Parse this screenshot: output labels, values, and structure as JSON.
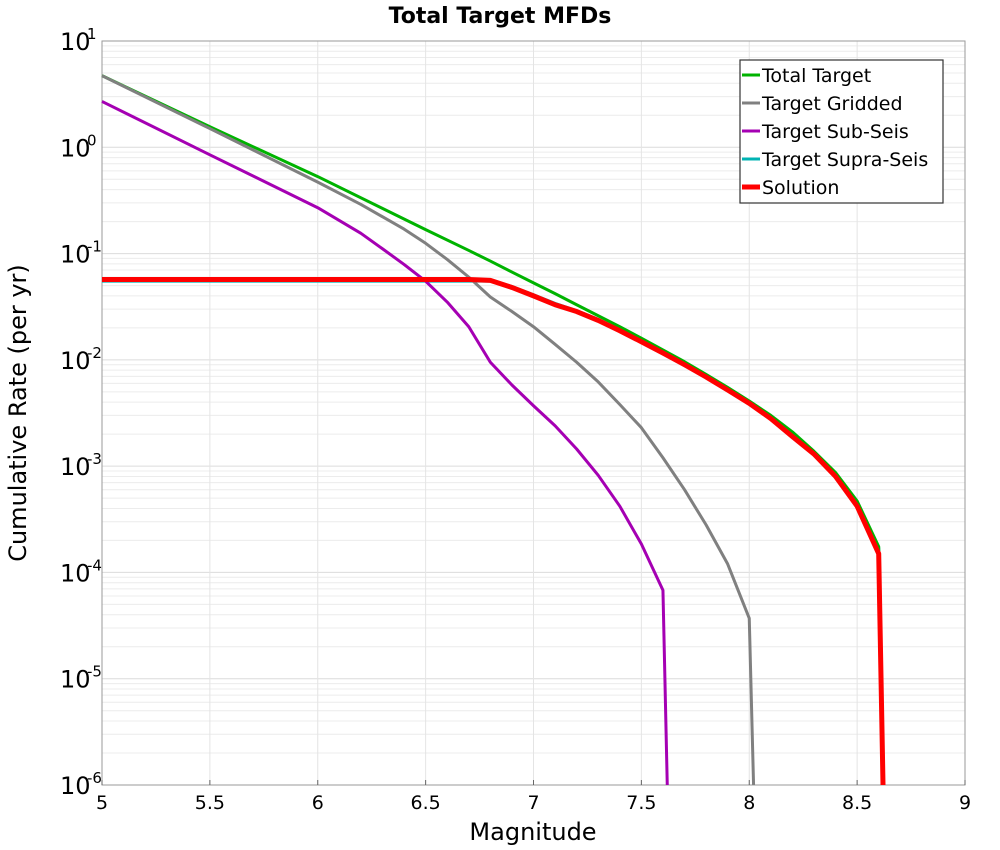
{
  "chart_data": {
    "type": "line",
    "title": "Total Target MFDs",
    "xlabel": "Magnitude",
    "ylabel": "Cumulative Rate (per yr)",
    "xlim": [
      5,
      9
    ],
    "ylim": [
      1e-06,
      10
    ],
    "yscale": "log",
    "grid": true,
    "legend_position": "top-right",
    "xticks": [
      "5",
      "5.5",
      "6",
      "6.5",
      "7",
      "7.5",
      "8",
      "8.5",
      "9"
    ],
    "ytick_base": "10",
    "yticks": [
      {
        "value": 10,
        "exp": "1"
      },
      {
        "value": 1,
        "exp": "0"
      },
      {
        "value": 0.1,
        "exp": "-1"
      },
      {
        "value": 0.01,
        "exp": "-2"
      },
      {
        "value": 0.001,
        "exp": "-3"
      },
      {
        "value": 0.0001,
        "exp": "-4"
      },
      {
        "value": 1e-05,
        "exp": "-5"
      },
      {
        "value": 1e-06,
        "exp": "-6"
      }
    ],
    "series": [
      {
        "name": "Target Supra-Seis",
        "color": "#00b3b3",
        "width": 3,
        "points": [
          [
            5.0,
            0.055
          ],
          [
            6.5,
            0.055
          ],
          [
            6.7,
            0.055
          ],
          [
            6.8,
            0.055
          ],
          [
            6.9,
            0.049
          ],
          [
            7.0,
            0.041
          ],
          [
            7.1,
            0.034
          ],
          [
            7.2,
            0.029
          ],
          [
            7.3,
            0.024
          ],
          [
            7.4,
            0.019
          ],
          [
            7.5,
            0.015
          ],
          [
            7.6,
            0.0118
          ],
          [
            7.7,
            0.0092
          ],
          [
            7.8,
            0.0071
          ],
          [
            7.9,
            0.0054
          ],
          [
            8.0,
            0.004
          ],
          [
            8.1,
            0.0029
          ],
          [
            8.2,
            0.002
          ],
          [
            8.3,
            0.00135
          ],
          [
            8.4,
            0.00085
          ],
          [
            8.5,
            0.00046
          ],
          [
            8.6,
            0.00017
          ],
          [
            8.62,
            1e-06
          ]
        ]
      },
      {
        "name": "Total Target",
        "color": "#00b300",
        "width": 3,
        "points": [
          [
            5.0,
            4.72
          ],
          [
            5.5,
            1.56
          ],
          [
            6.0,
            0.53
          ],
          [
            6.5,
            0.168
          ],
          [
            6.7,
            0.107
          ],
          [
            6.8,
            0.085
          ],
          [
            6.9,
            0.067
          ],
          [
            7.0,
            0.053
          ],
          [
            7.1,
            0.042
          ],
          [
            7.2,
            0.033
          ],
          [
            7.3,
            0.026
          ],
          [
            7.4,
            0.0205
          ],
          [
            7.5,
            0.016
          ],
          [
            7.6,
            0.0124
          ],
          [
            7.7,
            0.0096
          ],
          [
            7.8,
            0.0073
          ],
          [
            7.9,
            0.0055
          ],
          [
            8.0,
            0.0041
          ],
          [
            8.1,
            0.003
          ],
          [
            8.2,
            0.0021
          ],
          [
            8.3,
            0.00138
          ],
          [
            8.4,
            0.00087
          ],
          [
            8.5,
            0.00047
          ],
          [
            8.6,
            0.000175
          ],
          [
            8.62,
            1e-06
          ]
        ]
      },
      {
        "name": "Target Gridded",
        "color": "#808080",
        "width": 3,
        "points": [
          [
            5.0,
            4.72
          ],
          [
            5.5,
            1.5
          ],
          [
            6.0,
            0.47
          ],
          [
            6.2,
            0.29
          ],
          [
            6.4,
            0.17
          ],
          [
            6.5,
            0.125
          ],
          [
            6.6,
            0.088
          ],
          [
            6.7,
            0.06
          ],
          [
            6.8,
            0.039
          ],
          [
            6.9,
            0.0285
          ],
          [
            7.0,
            0.0205
          ],
          [
            7.1,
            0.014
          ],
          [
            7.2,
            0.0095
          ],
          [
            7.3,
            0.0062
          ],
          [
            7.4,
            0.0038
          ],
          [
            7.5,
            0.0023
          ],
          [
            7.6,
            0.0012
          ],
          [
            7.7,
            0.0006
          ],
          [
            7.8,
            0.00028
          ],
          [
            7.9,
            0.00012
          ],
          [
            8.0,
            3.7e-05
          ],
          [
            8.02,
            1e-06
          ]
        ]
      },
      {
        "name": "Target Sub-Seis",
        "color": "#a500b3",
        "width": 3,
        "points": [
          [
            5.0,
            2.7
          ],
          [
            5.5,
            0.85
          ],
          [
            6.0,
            0.27
          ],
          [
            6.2,
            0.155
          ],
          [
            6.3,
            0.111
          ],
          [
            6.4,
            0.079
          ],
          [
            6.5,
            0.055
          ],
          [
            6.6,
            0.035
          ],
          [
            6.7,
            0.0205
          ],
          [
            6.8,
            0.0095
          ],
          [
            6.9,
            0.0058
          ],
          [
            7.0,
            0.0037
          ],
          [
            7.1,
            0.0024
          ],
          [
            7.2,
            0.00145
          ],
          [
            7.3,
            0.00082
          ],
          [
            7.4,
            0.00042
          ],
          [
            7.5,
            0.000185
          ],
          [
            7.6,
            6.8e-05
          ],
          [
            7.62,
            1e-06
          ]
        ]
      },
      {
        "name": "Solution",
        "color": "#ff0000",
        "width": 5,
        "points": [
          [
            5.0,
            0.057
          ],
          [
            6.5,
            0.057
          ],
          [
            6.7,
            0.057
          ],
          [
            6.8,
            0.056
          ],
          [
            6.9,
            0.048
          ],
          [
            7.0,
            0.04
          ],
          [
            7.1,
            0.033
          ],
          [
            7.2,
            0.0285
          ],
          [
            7.3,
            0.0235
          ],
          [
            7.4,
            0.0188
          ],
          [
            7.5,
            0.0148
          ],
          [
            7.6,
            0.0116
          ],
          [
            7.7,
            0.009
          ],
          [
            7.8,
            0.0069
          ],
          [
            7.9,
            0.0052
          ],
          [
            8.0,
            0.0039
          ],
          [
            8.1,
            0.0028
          ],
          [
            8.2,
            0.0019
          ],
          [
            8.3,
            0.0013
          ],
          [
            8.4,
            0.0008
          ],
          [
            8.5,
            0.00042
          ],
          [
            8.6,
            0.00015
          ],
          [
            8.62,
            1e-06
          ]
        ]
      }
    ],
    "legend": [
      {
        "label": "Total Target",
        "color": "#00b300",
        "width": 3
      },
      {
        "label": "Target Gridded",
        "color": "#808080",
        "width": 3
      },
      {
        "label": "Target Sub-Seis",
        "color": "#a500b3",
        "width": 3
      },
      {
        "label": "Target Supra-Seis",
        "color": "#00b3b3",
        "width": 3
      },
      {
        "label": "Solution",
        "color": "#ff0000",
        "width": 5
      }
    ]
  }
}
